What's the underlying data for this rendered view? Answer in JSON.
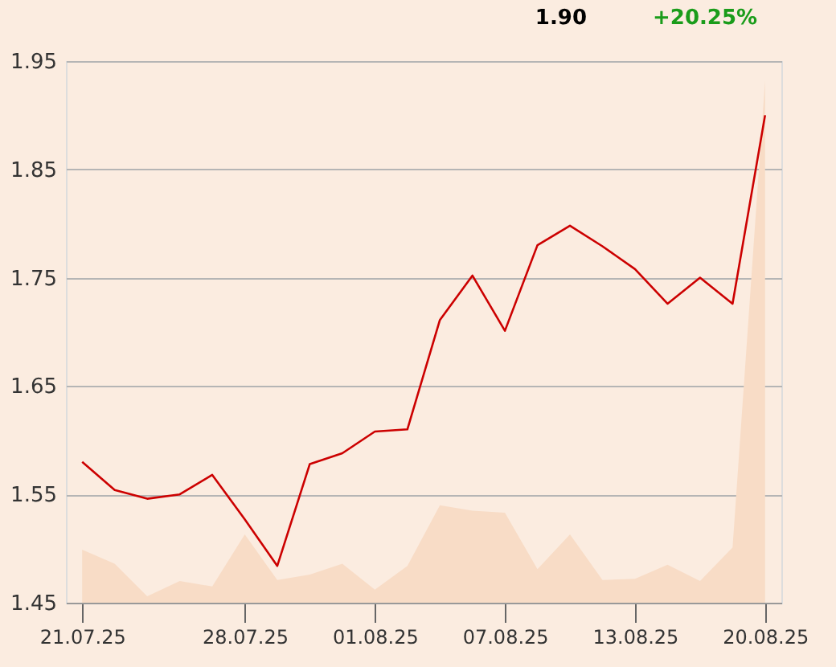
{
  "chart_data": {
    "type": "line",
    "categories": [
      "21.07.25",
      null,
      null,
      null,
      null,
      "28.07.25",
      null,
      null,
      null,
      "01.08.25",
      null,
      null,
      null,
      "07.08.25",
      null,
      null,
      null,
      "13.08.25",
      null,
      null,
      null,
      "20.08.25"
    ],
    "series": [
      {
        "type": "area",
        "color": "#f8dcc6",
        "values": [
          1.499,
          1.486,
          1.456,
          1.47,
          1.465,
          1.513,
          1.471,
          1.476,
          1.486,
          1.462,
          1.484,
          1.54,
          1.535,
          1.533,
          1.481,
          1.513,
          1.471,
          1.472,
          1.485,
          1.47,
          1.501,
          1.932
        ]
      },
      {
        "color": "#cc0000",
        "values": [
          1.58,
          1.554,
          1.546,
          1.55,
          1.568,
          1.527,
          1.484,
          1.578,
          1.588,
          1.608,
          1.61,
          1.711,
          1.752,
          1.701,
          1.78,
          1.798,
          1.779,
          1.758,
          1.726,
          1.75,
          1.726,
          1.9
        ]
      }
    ],
    "ylim": [
      1.45,
      1.95
    ],
    "yticks": [
      1.45,
      1.55,
      1.65,
      1.75,
      1.85,
      1.95
    ],
    "grid": "y",
    "annotations": [
      "1.90",
      "+20.25%"
    ]
  }
}
